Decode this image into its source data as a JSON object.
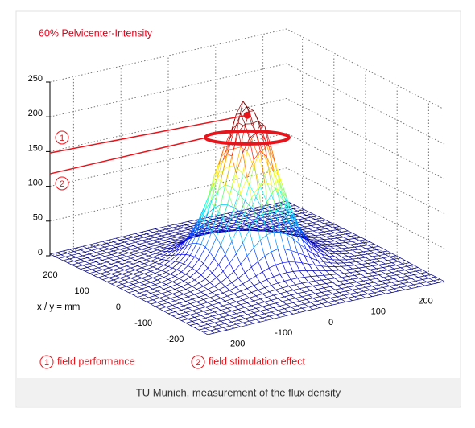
{
  "chart_data": {
    "type": "surface",
    "title": "60% Pelvicenter-Intensity",
    "zlim": [
      0,
      250
    ],
    "zticks": [
      0,
      50,
      100,
      150,
      200,
      250
    ],
    "xlim": [
      -250,
      250
    ],
    "xticks": [
      200,
      100,
      0,
      -100,
      -200
    ],
    "ylim": [
      -250,
      250
    ],
    "yticks": [
      -200,
      -100,
      0,
      100,
      200
    ],
    "axis_label": "x / y = mm",
    "annotations": [
      {
        "marker": "1",
        "label": "field performance"
      },
      {
        "marker": "2",
        "label": "field stimulation effect"
      }
    ]
  },
  "caption": "TU Munich, measurement of the flux density"
}
